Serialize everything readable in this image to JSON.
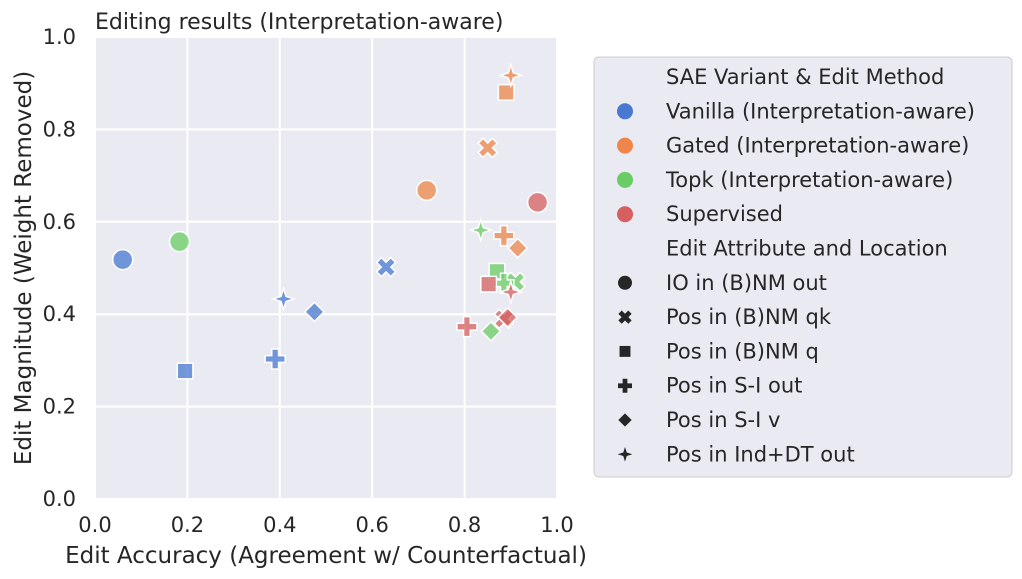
{
  "chart_data": {
    "type": "scatter",
    "title": "Editing results (Interpretation-aware)",
    "xlabel": "Edit Accuracy (Agreement w/ Counterfactual)",
    "ylabel": "Edit Magnitude (Weight Removed)",
    "xlim": [
      0.0,
      1.0
    ],
    "ylim": [
      0.0,
      1.0
    ],
    "xticks": [
      "0.0",
      "0.2",
      "0.4",
      "0.6",
      "0.8",
      "1.0"
    ],
    "yticks": [
      "0.0",
      "0.2",
      "0.4",
      "0.6",
      "0.8",
      "1.0"
    ],
    "grid": true,
    "legend_position": "right, outside plot",
    "colors": {
      "Vanilla": "#4878d0",
      "Gated": "#ee854a",
      "Topk": "#6acc64",
      "Supervised": "#d65f5f",
      "background": "#eaeaf2",
      "grid": "#ffffff"
    },
    "legend": {
      "variant_title": "SAE Variant & Edit Method",
      "variants": [
        {
          "key": "Vanilla",
          "label": "Vanilla (Interpretation-aware)"
        },
        {
          "key": "Gated",
          "label": "Gated (Interpretation-aware)"
        },
        {
          "key": "Topk",
          "label": "Topk (Interpretation-aware)"
        },
        {
          "key": "Supervised",
          "label": "Supervised"
        }
      ],
      "marker_title": "Edit Attribute and Location",
      "markers": [
        {
          "shape": "circle",
          "label": "IO in (B)NM out"
        },
        {
          "shape": "x",
          "label": "Pos in (B)NM qk"
        },
        {
          "shape": "square",
          "label": "Pos in (B)NM q"
        },
        {
          "shape": "plus",
          "label": "Pos in S-I out"
        },
        {
          "shape": "diamond",
          "label": "Pos in S-I v"
        },
        {
          "shape": "star",
          "label": "Pos in Ind+DT out"
        }
      ]
    },
    "points": [
      {
        "variant": "Vanilla",
        "shape": "circle",
        "x": 0.06,
        "y": 0.518
      },
      {
        "variant": "Vanilla",
        "shape": "x",
        "x": 0.63,
        "y": 0.502
      },
      {
        "variant": "Vanilla",
        "shape": "square",
        "x": 0.195,
        "y": 0.277
      },
      {
        "variant": "Vanilla",
        "shape": "plus",
        "x": 0.39,
        "y": 0.303
      },
      {
        "variant": "Vanilla",
        "shape": "diamond",
        "x": 0.475,
        "y": 0.405
      },
      {
        "variant": "Vanilla",
        "shape": "star",
        "x": 0.408,
        "y": 0.433
      },
      {
        "variant": "Gated",
        "shape": "circle",
        "x": 0.718,
        "y": 0.668
      },
      {
        "variant": "Gated",
        "shape": "x",
        "x": 0.85,
        "y": 0.76
      },
      {
        "variant": "Gated",
        "shape": "square",
        "x": 0.89,
        "y": 0.88
      },
      {
        "variant": "Gated",
        "shape": "plus",
        "x": 0.885,
        "y": 0.57
      },
      {
        "variant": "Gated",
        "shape": "diamond",
        "x": 0.915,
        "y": 0.543
      },
      {
        "variant": "Gated",
        "shape": "star",
        "x": 0.9,
        "y": 0.917
      },
      {
        "variant": "Topk",
        "shape": "circle",
        "x": 0.183,
        "y": 0.557
      },
      {
        "variant": "Topk",
        "shape": "x",
        "x": 0.91,
        "y": 0.47
      },
      {
        "variant": "Topk",
        "shape": "square",
        "x": 0.87,
        "y": 0.493
      },
      {
        "variant": "Topk",
        "shape": "plus",
        "x": 0.885,
        "y": 0.467
      },
      {
        "variant": "Topk",
        "shape": "diamond",
        "x": 0.857,
        "y": 0.363
      },
      {
        "variant": "Topk",
        "shape": "star",
        "x": 0.835,
        "y": 0.582
      },
      {
        "variant": "Supervised",
        "shape": "circle",
        "x": 0.958,
        "y": 0.642
      },
      {
        "variant": "Supervised",
        "shape": "x",
        "x": 0.885,
        "y": 0.39
      },
      {
        "variant": "Supervised",
        "shape": "square",
        "x": 0.852,
        "y": 0.465
      },
      {
        "variant": "Supervised",
        "shape": "plus",
        "x": 0.805,
        "y": 0.373
      },
      {
        "variant": "Supervised",
        "shape": "diamond",
        "x": 0.893,
        "y": 0.393
      },
      {
        "variant": "Supervised",
        "shape": "star",
        "x": 0.9,
        "y": 0.448
      }
    ]
  }
}
